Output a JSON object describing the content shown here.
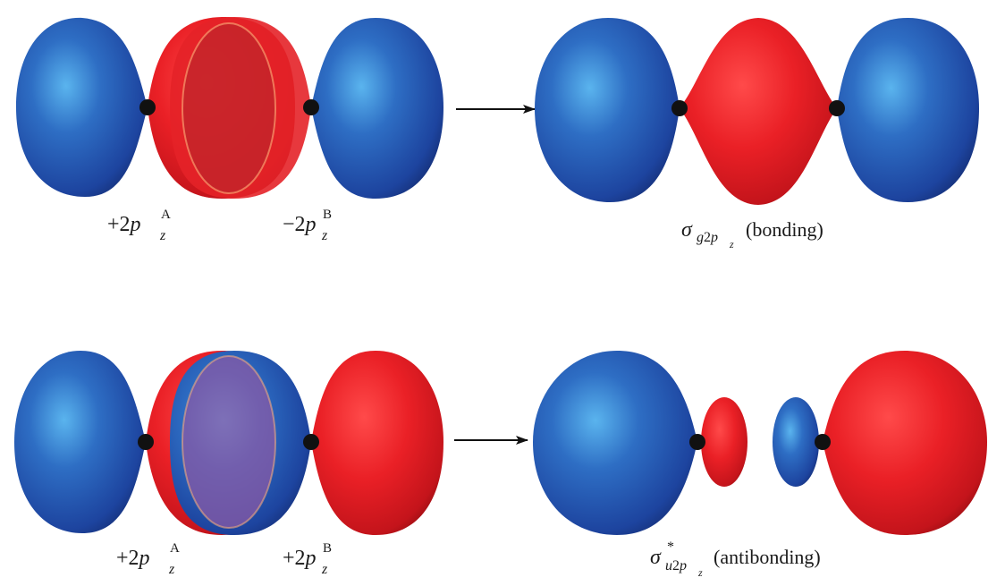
{
  "colors": {
    "positive_lobe": "#e61e25",
    "negative_lobe": "#1f48a8",
    "overlap_same": "#c0262a",
    "overlap_mixed": "#7a4a8c",
    "nucleus": "#111111",
    "arrow": "#111111"
  },
  "rows": [
    {
      "left_label": {
        "sign": "+",
        "n": "2",
        "orbital": "p",
        "axis": "z",
        "atom": "A"
      },
      "right_label": {
        "sign": "−",
        "n": "2",
        "orbital": "p",
        "axis": "z",
        "atom": "B"
      },
      "result_label": {
        "greek": "σ",
        "sub_sym": "g",
        "sub_n": "2",
        "sub_orb": "p",
        "sub_axis": "z",
        "star": "",
        "desc": "(bonding)"
      }
    },
    {
      "left_label": {
        "sign": "+",
        "n": "2",
        "orbital": "p",
        "axis": "z",
        "atom": "A"
      },
      "right_label": {
        "sign": "+",
        "n": "2",
        "orbital": "p",
        "axis": "z",
        "atom": "B"
      },
      "result_label": {
        "greek": "σ",
        "sub_sym": "u",
        "sub_n": "2",
        "sub_orb": "p",
        "sub_axis": "z",
        "star": "*",
        "desc": "(antibonding)"
      }
    }
  ]
}
